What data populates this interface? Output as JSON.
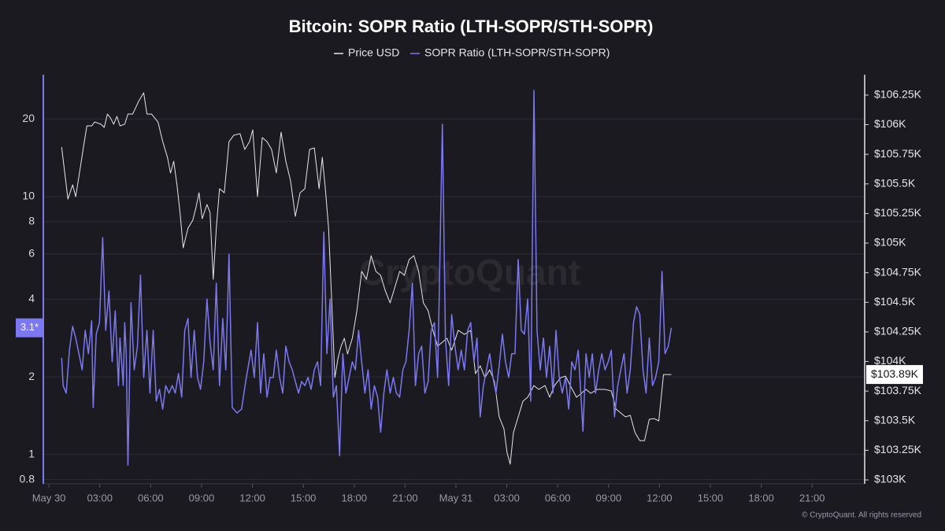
{
  "chart_data": {
    "type": "line",
    "title": "Bitcoin: SOPR Ratio (LTH-SOPR/STH-SOPR)",
    "watermark": "CryptoQuant",
    "footer": "© CryptoQuant. All rights reserved",
    "grid": true,
    "yscale": "log",
    "xlim": [
      -0.33,
      48.1
    ],
    "xticks": [
      {
        "value": 0,
        "label": "May 30"
      },
      {
        "value": 3,
        "label": "03:00"
      },
      {
        "value": 6,
        "label": "06:00"
      },
      {
        "value": 9,
        "label": "09:00"
      },
      {
        "value": 12,
        "label": "12:00"
      },
      {
        "value": 15,
        "label": "15:00"
      },
      {
        "value": 18,
        "label": "18:00"
      },
      {
        "value": 21,
        "label": "21:00"
      },
      {
        "value": 24,
        "label": "May 31"
      },
      {
        "value": 27,
        "label": "03:00"
      },
      {
        "value": 30,
        "label": "06:00"
      },
      {
        "value": 33,
        "label": "09:00"
      },
      {
        "value": 36,
        "label": "12:00"
      },
      {
        "value": 39,
        "label": "15:00"
      },
      {
        "value": 42,
        "label": "18:00"
      },
      {
        "value": 45,
        "label": "21:00"
      }
    ],
    "ylim": [
      0.77,
      29.7
    ],
    "yticks": [
      0.8,
      1,
      2,
      4,
      6,
      8,
      10,
      20
    ],
    "y2lim": [
      102967,
      106422
    ],
    "y2ticks": [
      {
        "value": 103000,
        "label": "$103K"
      },
      {
        "value": 103250,
        "label": "$103.25K"
      },
      {
        "value": 103500,
        "label": "$103.5K"
      },
      {
        "value": 103750,
        "label": "$103.75K"
      },
      {
        "value": 104000,
        "label": "$104K"
      },
      {
        "value": 104250,
        "label": "$104.25K"
      },
      {
        "value": 104500,
        "label": "$104.5K"
      },
      {
        "value": 104750,
        "label": "$104.75K"
      },
      {
        "value": 105000,
        "label": "$105K"
      },
      {
        "value": 105250,
        "label": "$105.25K"
      },
      {
        "value": 105500,
        "label": "$105.5K"
      },
      {
        "value": 105750,
        "label": "$105.75K"
      },
      {
        "value": 106000,
        "label": "$106K"
      },
      {
        "value": 106250,
        "label": "$106.25K"
      }
    ],
    "last_value_y": {
      "value": 3.1,
      "label": "3.1*"
    },
    "last_value_y2": {
      "value": 103890,
      "label": "$103.89K"
    },
    "series": [
      {
        "name": "Price USD",
        "color": "#e6e6ea",
        "axis": "y2",
        "x": [
          0.75,
          1.12,
          1.4,
          1.58,
          1.86,
          2.05,
          2.24,
          2.52,
          2.7,
          3.07,
          3.26,
          3.45,
          3.63,
          3.82,
          4.01,
          4.19,
          4.47,
          4.66,
          4.94,
          5.31,
          5.59,
          5.78,
          6.05,
          6.43,
          6.71,
          6.99,
          7.17,
          7.36,
          7.55,
          7.73,
          7.92,
          8.2,
          8.48,
          8.66,
          8.85,
          9.04,
          9.32,
          9.5,
          9.69,
          9.87,
          10.06,
          10.34,
          10.62,
          10.9,
          11.27,
          11.55,
          11.83,
          12.02,
          12.3,
          12.58,
          12.86,
          13.13,
          13.41,
          13.69,
          13.97,
          14.25,
          14.53,
          14.81,
          15.09,
          15.37,
          15.65,
          15.93,
          16.12,
          16.3,
          16.49,
          16.67,
          16.86,
          17.05,
          17.23,
          17.42,
          17.61,
          17.89,
          18.16,
          18.44,
          18.72,
          19.0,
          19.28,
          19.56,
          19.84,
          20.12,
          20.4,
          20.68,
          20.96,
          21.24,
          21.52,
          21.8,
          22.08,
          22.36,
          22.64,
          22.92,
          23.2,
          23.47,
          23.75,
          24.13,
          24.5,
          24.87,
          25.15,
          25.43,
          25.71,
          25.99,
          26.27,
          26.55,
          26.83,
          27.01,
          27.2,
          27.39,
          27.67,
          27.95,
          28.23,
          28.6,
          28.88,
          29.25,
          29.53,
          29.81,
          30.18,
          30.46,
          30.74,
          31.11,
          31.39,
          31.67,
          31.95,
          32.32,
          32.79,
          33.16,
          33.44,
          33.72,
          34.0,
          34.28,
          34.56,
          34.84,
          35.12,
          35.4,
          35.68,
          35.96,
          36.24,
          36.7
        ],
        "values": [
          105811,
          105372,
          105492,
          105392,
          105645,
          105824,
          105990,
          105990,
          106023,
          106004,
          105977,
          106090,
          106057,
          106004,
          106070,
          105990,
          106004,
          106090,
          106090,
          106203,
          106269,
          106090,
          106090,
          106023,
          105857,
          105724,
          105592,
          105691,
          105492,
          105259,
          104960,
          105126,
          105193,
          105293,
          105425,
          105206,
          105326,
          105259,
          104694,
          105126,
          105459,
          105425,
          105857,
          105911,
          105924,
          105791,
          105857,
          105957,
          105392,
          105891,
          105857,
          105791,
          105592,
          105937,
          105691,
          105525,
          105226,
          105425,
          105459,
          105791,
          105804,
          105459,
          105724,
          105459,
          105126,
          104528,
          103864,
          104030,
          104130,
          104196,
          104063,
          104196,
          104429,
          104761,
          104694,
          104894,
          104761,
          104728,
          104595,
          104495,
          104628,
          104761,
          104728,
          104861,
          104894,
          104761,
          104495,
          104429,
          104263,
          104130,
          104163,
          104196,
          104096,
          104263,
          104229,
          104263,
          103897,
          103964,
          103864,
          103930,
          103831,
          103532,
          103432,
          103233,
          103133,
          103399,
          103532,
          103665,
          103698,
          103797,
          103764,
          103797,
          103698,
          103797,
          103864,
          103877,
          103797,
          103698,
          103731,
          103764,
          103731,
          103764,
          103764,
          103751,
          103598,
          103565,
          103532,
          103545,
          103399,
          103332,
          103332,
          103512,
          103518,
          103498,
          103890,
          103890
        ]
      },
      {
        "name": "SOPR Ratio (LTH-SOPR/STH-SOPR)",
        "color": "#7b78f0",
        "axis": "y",
        "x": [
          0.75,
          0.84,
          1.02,
          1.21,
          1.4,
          1.58,
          1.77,
          1.96,
          2.14,
          2.33,
          2.52,
          2.61,
          2.79,
          2.98,
          3.17,
          3.35,
          3.54,
          3.73,
          3.91,
          4.1,
          4.19,
          4.38,
          4.47,
          4.56,
          4.66,
          4.84,
          5.03,
          5.22,
          5.4,
          5.59,
          5.78,
          5.96,
          6.15,
          6.33,
          6.52,
          6.71,
          6.89,
          7.08,
          7.27,
          7.45,
          7.64,
          7.83,
          8.01,
          8.2,
          8.38,
          8.57,
          8.76,
          8.94,
          9.13,
          9.32,
          9.5,
          9.69,
          9.87,
          10.06,
          10.25,
          10.43,
          10.62,
          10.81,
          11.09,
          11.36,
          11.64,
          11.92,
          12.11,
          12.3,
          12.48,
          12.67,
          12.86,
          13.04,
          13.23,
          13.41,
          13.6,
          13.79,
          13.97,
          14.16,
          14.35,
          14.53,
          14.72,
          14.9,
          15.09,
          15.28,
          15.46,
          15.65,
          15.84,
          16.02,
          16.21,
          16.39,
          16.58,
          16.77,
          16.95,
          17.14,
          17.33,
          17.51,
          17.7,
          17.89,
          18.07,
          18.26,
          18.44,
          18.63,
          18.82,
          19.0,
          19.19,
          19.38,
          19.56,
          19.75,
          19.93,
          20.12,
          20.31,
          20.49,
          20.68,
          20.87,
          21.05,
          21.24,
          21.43,
          21.61,
          21.8,
          21.98,
          22.17,
          22.36,
          22.54,
          22.73,
          22.92,
          23.01,
          23.2,
          23.38,
          23.57,
          23.75,
          23.94,
          24.13,
          24.31,
          24.5,
          24.69,
          24.87,
          25.06,
          25.24,
          25.43,
          25.62,
          25.8,
          25.99,
          26.18,
          26.36,
          26.55,
          26.74,
          26.92,
          27.11,
          27.29,
          27.48,
          27.67,
          27.85,
          28.04,
          28.23,
          28.41,
          28.6,
          28.78,
          28.97,
          29.16,
          29.34,
          29.53,
          29.72,
          29.9,
          30.09,
          30.27,
          30.46,
          30.65,
          30.83,
          31.02,
          31.21,
          31.39,
          31.49,
          31.67,
          31.86,
          32.04,
          32.23,
          32.42,
          32.6,
          32.79,
          32.98,
          33.16,
          33.35,
          33.54,
          33.72,
          33.91,
          34.09,
          34.28,
          34.47,
          34.65,
          34.84,
          35.03,
          35.21,
          35.4,
          35.59,
          35.77,
          35.96,
          36.15,
          36.33,
          36.52,
          36.7
        ],
        "values": [
          2.37,
          1.85,
          1.73,
          2.54,
          3.14,
          2.83,
          2.46,
          2.13,
          3.03,
          2.46,
          3.3,
          1.52,
          2.93,
          3.25,
          6.94,
          3.03,
          4.31,
          2.29,
          3.61,
          1.85,
          2.83,
          1.85,
          3.25,
          2.46,
          0.91,
          3.88,
          2.13,
          2.63,
          4.96,
          1.99,
          3.03,
          1.73,
          3.03,
          1.61,
          1.79,
          1.5,
          1.85,
          1.73,
          1.85,
          1.73,
          2.06,
          1.67,
          3.03,
          3.37,
          1.99,
          3.03,
          1.99,
          1.79,
          2.29,
          4.01,
          2.73,
          2.13,
          4.62,
          1.85,
          3.37,
          2.13,
          5.99,
          1.52,
          1.45,
          1.5,
          1.99,
          2.54,
          1.99,
          3.25,
          1.73,
          2.46,
          1.67,
          1.99,
          1.99,
          2.54,
          1.99,
          1.73,
          2.63,
          2.29,
          2.13,
          1.92,
          1.73,
          1.92,
          1.85,
          1.99,
          1.79,
          2.13,
          2.29,
          1.85,
          7.29,
          2.46,
          4.01,
          1.67,
          1.85,
          0.99,
          2.46,
          1.73,
          1.99,
          2.29,
          2.13,
          3.03,
          2.29,
          1.73,
          2.13,
          1.5,
          1.85,
          1.67,
          1.22,
          1.73,
          2.13,
          1.73,
          1.99,
          1.73,
          1.67,
          2.13,
          2.29,
          3.03,
          4.62,
          1.85,
          2.46,
          2.63,
          1.73,
          1.92,
          3.03,
          3.25,
          1.99,
          4.01,
          19.1,
          2.83,
          1.85,
          3.49,
          2.63,
          2.13,
          2.54,
          2.13,
          3.03,
          3.25,
          2.29,
          2.83,
          1.4,
          1.85,
          2.13,
          2.46,
          1.99,
          1.73,
          2.21,
          2.93,
          2.29,
          1.99,
          2.46,
          2.46,
          5.7,
          3.03,
          2.93,
          4.01,
          1.61,
          25.8,
          3.03,
          2.13,
          2.83,
          1.99,
          2.63,
          1.73,
          3.03,
          1.99,
          1.73,
          1.99,
          1.5,
          2.29,
          2.13,
          2.54,
          1.61,
          1.23,
          2.46,
          1.99,
          2.46,
          1.73,
          2.13,
          2.46,
          2.13,
          2.29,
          2.54,
          1.4,
          1.85,
          2.13,
          2.46,
          1.73,
          2.13,
          3.25,
          3.74,
          3.49,
          2.13,
          1.73,
          2.83,
          1.85,
          1.99,
          2.29,
          5.13,
          2.46,
          2.63,
          3.1
        ]
      }
    ]
  }
}
